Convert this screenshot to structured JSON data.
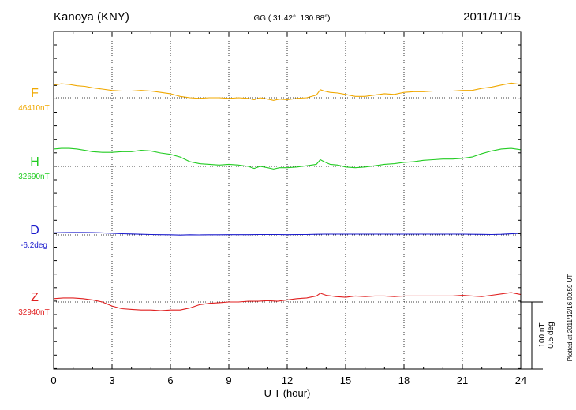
{
  "header": {
    "station": "Kanoya (KNY)",
    "coords": "GG ( 31.42°, 130.88°)",
    "date": "2011/11/15"
  },
  "plotted_note": "Plotted at 2011/12/16 00:59 UT",
  "scale_note": {
    "line1": "100 nT",
    "line2": "0.5 deg"
  },
  "chart_data": {
    "type": "line",
    "xlabel": "U T (hour)",
    "xlim": [
      0,
      24
    ],
    "xticks": [
      0,
      3,
      6,
      9,
      12,
      15,
      18,
      21,
      24
    ],
    "tick_labels": [
      "0",
      "3",
      "6",
      "9",
      "12",
      "15",
      "18",
      "21",
      "24"
    ],
    "grid": true,
    "scale_unit": "100 nT / 0.5 deg per scale bar",
    "series": [
      {
        "name": "F",
        "baseline_label": "46410nT",
        "baseline": 46410,
        "unit": "nT",
        "color": "#f0a800",
        "x": [
          0,
          0.4,
          0.8,
          1.2,
          1.6,
          2,
          2.5,
          3,
          3.5,
          4,
          4.5,
          5,
          5.5,
          6,
          6.5,
          7,
          7.5,
          8,
          8.5,
          9,
          9.5,
          10,
          10.3,
          10.6,
          11,
          11.3,
          11.6,
          12,
          12.5,
          13,
          13.5,
          13.7,
          13.9,
          14.2,
          14.6,
          15,
          15.5,
          16,
          16.5,
          17,
          17.5,
          18,
          18.5,
          19,
          19.5,
          20,
          20.5,
          21,
          21.5,
          22,
          22.5,
          23,
          23.5,
          24
        ],
        "y": [
          46429,
          46431,
          46430,
          46428,
          46427,
          46425,
          46423,
          46421,
          46420,
          46420,
          46421,
          46420,
          46418,
          46416,
          46412,
          46410,
          46409,
          46410,
          46410,
          46409,
          46410,
          46409,
          46407,
          46410,
          46408,
          46406,
          46408,
          46407,
          46409,
          46410,
          46414,
          46422,
          46420,
          46418,
          46417,
          46415,
          46412,
          46412,
          46414,
          46416,
          46415,
          46418,
          46419,
          46419,
          46420,
          46420,
          46420,
          46421,
          46421,
          46424,
          46426,
          46429,
          46432,
          46430
        ]
      },
      {
        "name": "H",
        "baseline_label": "32690nT",
        "baseline": 32690,
        "unit": "nT",
        "color": "#22cc22",
        "x": [
          0,
          0.4,
          0.8,
          1.2,
          1.6,
          2,
          2.5,
          3,
          3.5,
          4,
          4.5,
          5,
          5.5,
          6,
          6.5,
          7,
          7.5,
          8,
          8.5,
          9,
          9.5,
          10,
          10.3,
          10.6,
          11,
          11.3,
          11.6,
          12,
          12.5,
          13,
          13.5,
          13.7,
          13.9,
          14.2,
          14.6,
          15,
          15.5,
          16,
          16.5,
          17,
          17.5,
          18,
          18.5,
          19,
          19.5,
          20,
          20.5,
          21,
          21.5,
          22,
          22.5,
          23,
          23.5,
          24
        ],
        "y": [
          32716,
          32717,
          32717,
          32716,
          32714,
          32712,
          32711,
          32711,
          32712,
          32712,
          32714,
          32713,
          32710,
          32708,
          32704,
          32697,
          32694,
          32693,
          32692,
          32693,
          32692,
          32690,
          32687,
          32690,
          32688,
          32686,
          32688,
          32688,
          32689,
          32691,
          32693,
          32700,
          32697,
          32693,
          32692,
          32689,
          32688,
          32689,
          32691,
          32693,
          32694,
          32696,
          32697,
          32699,
          32700,
          32701,
          32701,
          32702,
          32704,
          32709,
          32713,
          32716,
          32717,
          32715
        ]
      },
      {
        "name": "D",
        "baseline_label": "-6.2deg",
        "baseline": -6.2,
        "unit": "deg",
        "color": "#1a1acc",
        "x": [
          0,
          0.5,
          1,
          1.5,
          2,
          2.5,
          3,
          3.5,
          4,
          4.5,
          5,
          5.5,
          6,
          6.5,
          7,
          7.5,
          8,
          8.5,
          9,
          9.5,
          10,
          10.5,
          11,
          11.5,
          12,
          12.5,
          13,
          13.5,
          14,
          14.5,
          15,
          15.5,
          16,
          16.5,
          17,
          17.5,
          18,
          18.5,
          19,
          19.5,
          20,
          20.5,
          21,
          21.5,
          22,
          22.5,
          23,
          23.5,
          24
        ],
        "y": [
          -6.184,
          -6.183,
          -6.182,
          -6.182,
          -6.183,
          -6.185,
          -6.188,
          -6.191,
          -6.193,
          -6.195,
          -6.197,
          -6.198,
          -6.199,
          -6.201,
          -6.199,
          -6.2,
          -6.199,
          -6.199,
          -6.198,
          -6.198,
          -6.198,
          -6.197,
          -6.197,
          -6.197,
          -6.198,
          -6.197,
          -6.197,
          -6.195,
          -6.194,
          -6.194,
          -6.194,
          -6.194,
          -6.194,
          -6.194,
          -6.194,
          -6.194,
          -6.194,
          -6.194,
          -6.194,
          -6.194,
          -6.194,
          -6.194,
          -6.194,
          -6.195,
          -6.196,
          -6.197,
          -6.195,
          -6.192,
          -6.188
        ]
      },
      {
        "name": "Z",
        "baseline_label": "32940nT",
        "baseline": 32940,
        "unit": "nT",
        "color": "#e02020",
        "x": [
          0,
          0.5,
          1,
          1.5,
          2,
          2.5,
          3,
          3.5,
          4,
          4.5,
          5,
          5.5,
          6,
          6.5,
          7,
          7.5,
          8,
          8.5,
          9,
          9.5,
          10,
          10.5,
          11,
          11.5,
          12,
          12.5,
          13,
          13.5,
          13.7,
          14,
          14.5,
          15,
          15.5,
          16,
          16.5,
          17,
          17.5,
          18,
          18.5,
          19,
          19.5,
          20,
          20.5,
          21,
          21.5,
          22,
          22.5,
          23,
          23.5,
          24
        ],
        "y": [
          32945,
          32946,
          32946,
          32945,
          32943,
          32940,
          32934,
          32930,
          32929,
          32928,
          32928,
          32927,
          32928,
          32928,
          32931,
          32936,
          32938,
          32939,
          32940,
          32940,
          32941,
          32941,
          32942,
          32941,
          32943,
          32945,
          32946,
          32949,
          32953,
          32950,
          32948,
          32947,
          32949,
          32948,
          32949,
          32949,
          32948,
          32949,
          32949,
          32949,
          32949,
          32949,
          32949,
          32950,
          32949,
          32948,
          32950,
          32952,
          32954,
          32951
        ]
      }
    ]
  }
}
